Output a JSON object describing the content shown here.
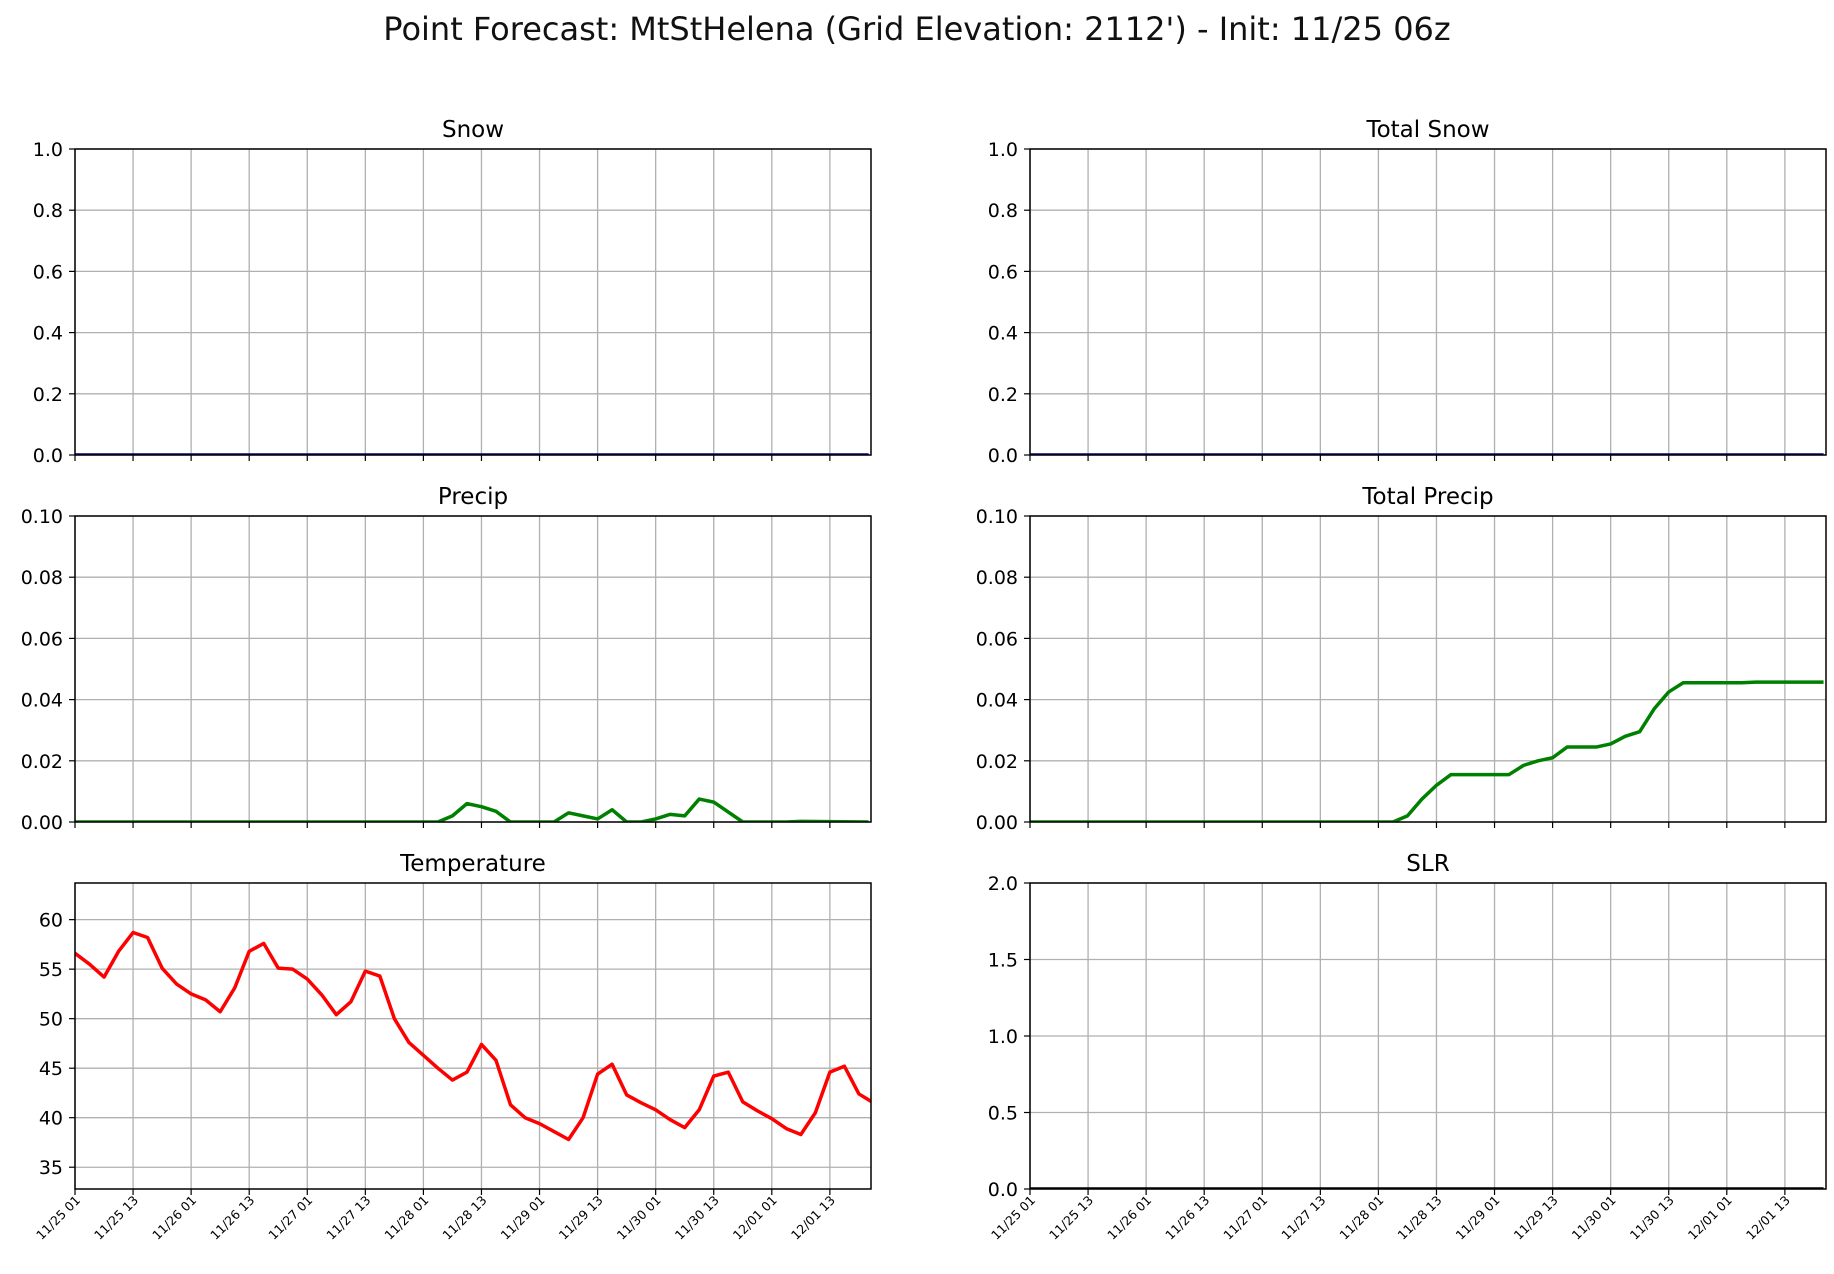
{
  "figure": {
    "title": "Point Forecast: MtStHelena (Grid Elevation: 2112') - Init: 11/25 06z"
  },
  "colors": {
    "snow": "#000080",
    "precip": "#008000",
    "temperature": "#ff0000",
    "slr": "#000000",
    "grid": "#b0b0b0",
    "axes": "#000000"
  },
  "chart_data": [
    {
      "type": "line",
      "title": "Snow",
      "xlabel": "",
      "ylabel": "",
      "ylim": [
        0,
        1.0
      ],
      "yticks": [
        "0.0",
        "0.2",
        "0.4",
        "0.6",
        "0.8",
        "1.0"
      ],
      "grid": true,
      "x_tick_labels": [],
      "series": [
        {
          "color": "#000080",
          "points": [
            [
              0,
              0
            ],
            [
              164,
              0
            ]
          ]
        }
      ]
    },
    {
      "type": "line",
      "title": "Total Snow",
      "xlabel": "",
      "ylabel": "",
      "ylim": [
        0,
        1.0
      ],
      "yticks": [
        "0.0",
        "0.2",
        "0.4",
        "0.6",
        "0.8",
        "1.0"
      ],
      "grid": true,
      "x_tick_labels": [],
      "series": [
        {
          "color": "#000080",
          "points": [
            [
              0,
              0
            ],
            [
              164,
              0
            ]
          ]
        }
      ]
    },
    {
      "type": "line",
      "title": "Precip",
      "xlabel": "",
      "ylabel": "",
      "ylim": [
        0,
        0.1
      ],
      "yticks": [
        "0.00",
        "0.02",
        "0.04",
        "0.06",
        "0.08",
        "0.10"
      ],
      "grid": true,
      "x_tick_labels": [],
      "series": [
        {
          "color": "#008000",
          "points": [
            [
              0,
              0
            ],
            [
              75,
              0
            ],
            [
              78,
              0.002
            ],
            [
              81,
              0.006
            ],
            [
              84,
              0.005
            ],
            [
              87,
              0.0035
            ],
            [
              90,
              0
            ],
            [
              99,
              0
            ],
            [
              102,
              0.003
            ],
            [
              105,
              0.002
            ],
            [
              108,
              0.001
            ],
            [
              111,
              0.004
            ],
            [
              114,
              0
            ],
            [
              117,
              0
            ],
            [
              120,
              0.001
            ],
            [
              123,
              0.0025
            ],
            [
              126,
              0.002
            ],
            [
              129,
              0.0075
            ],
            [
              132,
              0.0065
            ],
            [
              138,
              0
            ],
            [
              147,
              0
            ],
            [
              150,
              0.0002
            ],
            [
              164,
              0
            ]
          ]
        }
      ]
    },
    {
      "type": "line",
      "title": "Total Precip",
      "xlabel": "",
      "ylabel": "",
      "ylim": [
        0,
        0.1
      ],
      "yticks": [
        "0.00",
        "0.02",
        "0.04",
        "0.06",
        "0.08",
        "0.10"
      ],
      "grid": true,
      "x_tick_labels": [],
      "series": [
        {
          "color": "#008000",
          "points": [
            [
              0,
              0
            ],
            [
              75,
              0
            ],
            [
              78,
              0.002
            ],
            [
              81,
              0.0075
            ],
            [
              84,
              0.012
            ],
            [
              87,
              0.0155
            ],
            [
              90,
              0.0155
            ],
            [
              99,
              0.0155
            ],
            [
              102,
              0.0185
            ],
            [
              105,
              0.02
            ],
            [
              108,
              0.021
            ],
            [
              111,
              0.0245
            ],
            [
              114,
              0.0245
            ],
            [
              117,
              0.0245
            ],
            [
              120,
              0.0255
            ],
            [
              123,
              0.028
            ],
            [
              126,
              0.0295
            ],
            [
              129,
              0.037
            ],
            [
              132,
              0.0425
            ],
            [
              135,
              0.0455
            ],
            [
              147,
              0.0455
            ],
            [
              150,
              0.0457
            ],
            [
              164,
              0.0457
            ]
          ]
        }
      ]
    },
    {
      "type": "line",
      "title": "Temperature",
      "xlabel": "",
      "ylabel": "",
      "ylim": [
        32.8,
        63.7
      ],
      "yticks": [
        "35",
        "40",
        "45",
        "50",
        "55",
        "60"
      ],
      "ytick_values": [
        35,
        40,
        45,
        50,
        55,
        60
      ],
      "grid": true,
      "x_tick_labels": [
        "11/25 01",
        "11/25 13",
        "11/26 01",
        "11/26 13",
        "11/27 01",
        "11/27 13",
        "11/28 01",
        "11/28 13",
        "11/29 01",
        "11/29 13",
        "11/30 01",
        "11/30 13",
        "12/01 01",
        "12/01 13"
      ],
      "series": [
        {
          "color": "#ff0000",
          "points": [
            [
              0,
              56.6
            ],
            [
              3,
              55.5
            ],
            [
              6,
              54.2
            ],
            [
              9,
              56.8
            ],
            [
              12,
              58.7
            ],
            [
              15,
              58.2
            ],
            [
              18,
              55.1
            ],
            [
              21,
              53.5
            ],
            [
              24,
              52.5
            ],
            [
              27,
              51.9
            ],
            [
              30,
              50.7
            ],
            [
              33,
              53.1
            ],
            [
              36,
              56.8
            ],
            [
              39,
              57.6
            ],
            [
              42,
              55.1
            ],
            [
              45,
              55.0
            ],
            [
              48,
              54.0
            ],
            [
              51,
              52.4
            ],
            [
              54,
              50.4
            ],
            [
              57,
              51.7
            ],
            [
              60,
              54.8
            ],
            [
              63,
              54.3
            ],
            [
              66,
              50.0
            ],
            [
              69,
              47.6
            ],
            [
              72,
              46.3
            ],
            [
              75,
              45.0
            ],
            [
              78,
              43.8
            ],
            [
              81,
              44.6
            ],
            [
              84,
              47.4
            ],
            [
              87,
              45.8
            ],
            [
              90,
              41.3
            ],
            [
              93,
              40.0
            ],
            [
              96,
              39.4
            ],
            [
              99,
              38.6
            ],
            [
              102,
              37.8
            ],
            [
              105,
              40.0
            ],
            [
              108,
              44.4
            ],
            [
              111,
              45.4
            ],
            [
              114,
              42.3
            ],
            [
              117,
              41.5
            ],
            [
              120,
              40.8
            ],
            [
              123,
              39.8
            ],
            [
              126,
              39.0
            ],
            [
              129,
              40.8
            ],
            [
              132,
              44.2
            ],
            [
              135,
              44.6
            ],
            [
              138,
              41.6
            ],
            [
              141,
              40.7
            ],
            [
              144,
              39.9
            ],
            [
              147,
              38.9
            ],
            [
              150,
              38.3
            ],
            [
              153,
              40.5
            ],
            [
              156,
              44.6
            ],
            [
              159,
              45.2
            ],
            [
              162,
              42.4
            ],
            [
              165,
              41.5
            ]
          ]
        }
      ]
    },
    {
      "type": "line",
      "title": "SLR",
      "xlabel": "",
      "ylabel": "",
      "ylim": [
        0,
        2.0
      ],
      "yticks": [
        "0.0",
        "0.5",
        "1.0",
        "1.5",
        "2.0"
      ],
      "grid": true,
      "x_tick_labels": [
        "11/25 01",
        "11/25 13",
        "11/26 01",
        "11/26 13",
        "11/27 01",
        "11/27 13",
        "11/28 01",
        "11/28 13",
        "11/29 01",
        "11/29 13",
        "11/30 01",
        "11/30 13",
        "12/01 01",
        "12/01 13"
      ],
      "series": [
        {
          "color": "#000000",
          "points": [
            [
              0,
              0
            ],
            [
              164,
              0
            ]
          ]
        }
      ]
    }
  ]
}
